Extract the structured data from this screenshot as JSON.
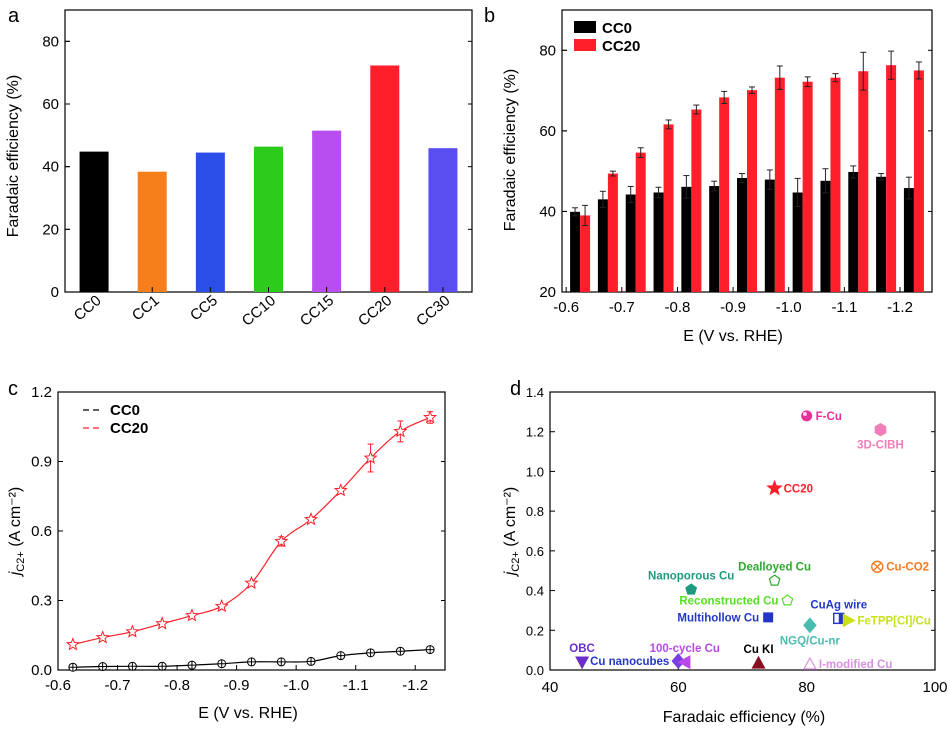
{
  "colors": {
    "axis": "#000000",
    "cc0": "#000000",
    "cc20": "#ff1f2a"
  },
  "chart_data": [
    {
      "panel": "a",
      "type": "bar",
      "xlabel": "",
      "ylabel": "Faradaic efficiency (%)",
      "ylim": [
        0,
        90
      ],
      "yticks": [
        0,
        20,
        40,
        60,
        80
      ],
      "categories": [
        "CC0",
        "CC1",
        "CC5",
        "CC10",
        "CC15",
        "CC20",
        "CC30"
      ],
      "values": [
        44.8,
        38.4,
        44.5,
        46.4,
        51.5,
        72.3,
        45.9
      ],
      "bar_colors": [
        "#000000",
        "#f77f1b",
        "#2b4de8",
        "#2ccb1c",
        "#b84ef0",
        "#ff1f2a",
        "#5b4ef0"
      ]
    },
    {
      "panel": "b",
      "type": "bar",
      "xlabel": "E (V vs. RHE)",
      "ylabel": "Faradaic efficiency (%)",
      "ylim": [
        20,
        90
      ],
      "yticks": [
        20,
        40,
        60,
        80
      ],
      "x": [
        -0.625,
        -0.675,
        -0.725,
        -0.775,
        -0.825,
        -0.875,
        -0.925,
        -0.975,
        -1.025,
        -1.075,
        -1.125,
        -1.175,
        -1.225
      ],
      "xticks": [
        "-0.6",
        "-0.7",
        "-0.8",
        "-0.9",
        "-1.0",
        "-1.1",
        "-1.2"
      ],
      "legend": "top-left",
      "series": [
        {
          "name": "CC0",
          "color": "#000000",
          "values": [
            39.9,
            43.0,
            44.2,
            44.7,
            46.1,
            46.3,
            48.3,
            47.9,
            44.7,
            47.6,
            49.8,
            48.6,
            45.8
          ],
          "errors": [
            1.0,
            2.0,
            2.0,
            1.3,
            2.8,
            1.2,
            1.1,
            2.4,
            3.5,
            3.0,
            1.5,
            0.8,
            2.7
          ]
        },
        {
          "name": "CC20",
          "color": "#ff1f2a",
          "values": [
            39.0,
            49.4,
            54.6,
            61.6,
            65.3,
            68.3,
            70.1,
            73.2,
            72.2,
            73.2,
            74.8,
            76.3,
            75.0
          ],
          "errors": [
            2.5,
            0.6,
            1.2,
            1.1,
            1.1,
            1.5,
            0.8,
            2.9,
            1.2,
            1.0,
            4.7,
            3.5,
            2.1
          ]
        }
      ]
    },
    {
      "panel": "c",
      "type": "line",
      "xlabel": "E (V vs. RHE)",
      "ylabel": "jC2+ (A cm⁻²)",
      "ylim": [
        0,
        1.2
      ],
      "yticks": [
        "0.0",
        "0.3",
        "0.6",
        "0.9",
        "1.2"
      ],
      "xlim": [
        -0.6,
        -1.25
      ],
      "xticks": [
        "-0.6",
        "-0.7",
        "-0.8",
        "-0.9",
        "-1.0",
        "-1.1",
        "-1.2"
      ],
      "x": [
        -0.625,
        -0.675,
        -0.725,
        -0.775,
        -0.825,
        -0.875,
        -0.925,
        -0.975,
        -1.025,
        -1.075,
        -1.125,
        -1.175,
        -1.225
      ],
      "legend": "top-left",
      "series": [
        {
          "name": "CC0",
          "color": "#000000",
          "marker": "circle-cross",
          "values": [
            0.012,
            0.015,
            0.016,
            0.016,
            0.021,
            0.027,
            0.035,
            0.035,
            0.037,
            0.062,
            0.074,
            0.081,
            0.088
          ],
          "errors": [
            0,
            0,
            0,
            0,
            0,
            0,
            0,
            0,
            0.005,
            0.007,
            0,
            0,
            0.006
          ]
        },
        {
          "name": "CC20",
          "color": "#ff1f2a",
          "marker": "star",
          "values": [
            0.11,
            0.14,
            0.165,
            0.2,
            0.235,
            0.275,
            0.375,
            0.555,
            0.65,
            0.775,
            0.915,
            1.03,
            1.09
          ],
          "errors": [
            0,
            0,
            0,
            0,
            0,
            0,
            0,
            0.02,
            0,
            0,
            0.06,
            0.045,
            0.025
          ]
        }
      ]
    },
    {
      "panel": "d",
      "type": "scatter",
      "xlabel": "Faradaic efficiency (%)",
      "ylabel": "jC2+ (A cm⁻²)",
      "xlim": [
        40,
        100
      ],
      "ylim": [
        0,
        1.4
      ],
      "xticks": [
        40,
        60,
        80,
        100
      ],
      "yticks": [
        "0.0",
        "0.2",
        "0.4",
        "0.6",
        "0.8",
        "1.0",
        "1.2",
        "1.4"
      ],
      "points": [
        {
          "label": "F-Cu",
          "x": 80.0,
          "y": 1.28,
          "color": "#e8309a",
          "marker": "sphere",
          "label_color": "#e8309a",
          "label_side": "right"
        },
        {
          "label": "3D-CIBH",
          "x": 91.5,
          "y": 1.21,
          "color": "#f07eb8",
          "marker": "hexagon",
          "label_color": "#f07eb8",
          "label_side": "below"
        },
        {
          "label": "CC20",
          "x": 75.0,
          "y": 0.915,
          "color": "#ff1f2a",
          "marker": "star",
          "label_color": "#ff1f2a",
          "label_side": "right"
        },
        {
          "label": "Dealloyed Cu",
          "x": 75.0,
          "y": 0.45,
          "color": "#2ea82e",
          "marker": "pentagon",
          "label_color": "#2ea82e",
          "label_side": "above"
        },
        {
          "label": "Cu-CO2",
          "x": 91.0,
          "y": 0.52,
          "color": "#f47a20",
          "marker": "circle-x",
          "label_color": "#f47a20",
          "label_side": "right"
        },
        {
          "label": "Nanoporous Cu",
          "x": 62.0,
          "y": 0.405,
          "color": "#1d9a80",
          "marker": "pentagon-filled",
          "label_color": "#1d9a80",
          "label_side": "above"
        },
        {
          "label": "Reconstructed Cu",
          "x": 77.0,
          "y": 0.35,
          "color": "#55e020",
          "marker": "pentagon",
          "label_color": "#55e020",
          "label_side": "left"
        },
        {
          "label": "CuAg wire",
          "x": 85.0,
          "y": 0.26,
          "color": "#2436c8",
          "marker": "half-square",
          "label_color": "#2436c8",
          "label_side": "above"
        },
        {
          "label": "FeTPP[Cl]/Cu",
          "x": 86.5,
          "y": 0.25,
          "color": "#c8e01a",
          "marker": "triangle-right",
          "label_color": "#c8e01a",
          "label_side": "right"
        },
        {
          "label": "Multihollow Cu",
          "x": 74.0,
          "y": 0.265,
          "color": "#2436c8",
          "marker": "square",
          "label_color": "#2436c8",
          "label_side": "left"
        },
        {
          "label": "NGQ/Cu-nr",
          "x": 80.5,
          "y": 0.225,
          "color": "#48bcae",
          "marker": "diamond",
          "label_color": "#48bcae",
          "label_side": "below"
        },
        {
          "label": "OBC",
          "x": 45.0,
          "y": 0.04,
          "color": "#6a2fc8",
          "marker": "triangle-down",
          "label_color": "#6a2fc8",
          "label_side": "above"
        },
        {
          "label": "Cu nanocubes",
          "x": 60.0,
          "y": 0.045,
          "color": "#7a3fe0",
          "marker": "diamond",
          "label_color": "#2436c8",
          "label_side": "left"
        },
        {
          "label": "100-cycle Cu",
          "x": 61.0,
          "y": 0.04,
          "color": "#b848e8",
          "marker": "triangle-left",
          "label_color": "#b848e8",
          "label_side": "above"
        },
        {
          "label": "Cu KI",
          "x": 72.5,
          "y": 0.035,
          "color": "#8a1020",
          "marker": "triangle-up",
          "label_color": "#000000",
          "label_side": "above"
        },
        {
          "label": "I-modified Cu",
          "x": 80.5,
          "y": 0.03,
          "color": "#d890e0",
          "marker": "triangle-up-open",
          "label_color": "#d890e0",
          "label_side": "right"
        }
      ]
    }
  ],
  "panel_letters": [
    "a",
    "b",
    "c",
    "d"
  ]
}
